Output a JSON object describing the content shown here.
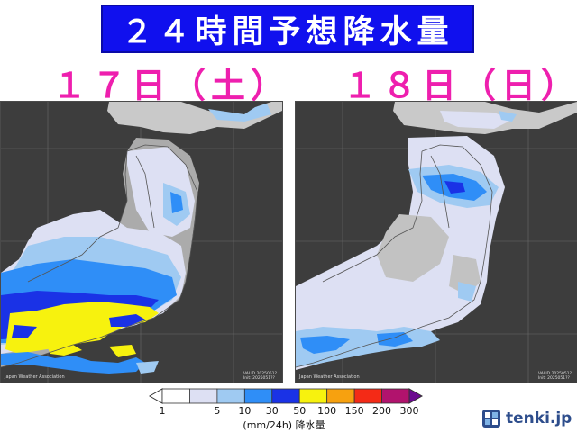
{
  "title": "２４時間予想降水量",
  "days": [
    {
      "label": "１７日（土）",
      "valid_text": "VALID 2025051?",
      "init_text": "Init: 2025051??"
    },
    {
      "label": "１８日（日）",
      "valid_text": "VALID 2025051?",
      "init_text": "Init: 2025051??"
    }
  ],
  "map_credit": "Japan Weather Association",
  "legend": {
    "ticks": [
      "1",
      "5",
      "10",
      "30",
      "50",
      "100",
      "150",
      "200",
      "300"
    ],
    "unit": "(mm/24h) 降水量",
    "colors": [
      "#ffffff",
      "#dde0f3",
      "#9fcaf2",
      "#2f8ef7",
      "#1a32e6",
      "#f7f20e",
      "#f7a10f",
      "#f42a16",
      "#b1136d"
    ]
  },
  "logo_text": "tenki.jp",
  "colors": {
    "banner": "#1010ee",
    "day_label": "#ee1fae",
    "sea": "#3d3d3d",
    "land_dry": "#ababab",
    "rain_light": "#dde0f3",
    "rain_moderate": "#9fcaf2",
    "rain_heavy": "#2f8ef7",
    "rain_very_heavy": "#1a32e6",
    "rain_extreme": "#f7f20e"
  }
}
